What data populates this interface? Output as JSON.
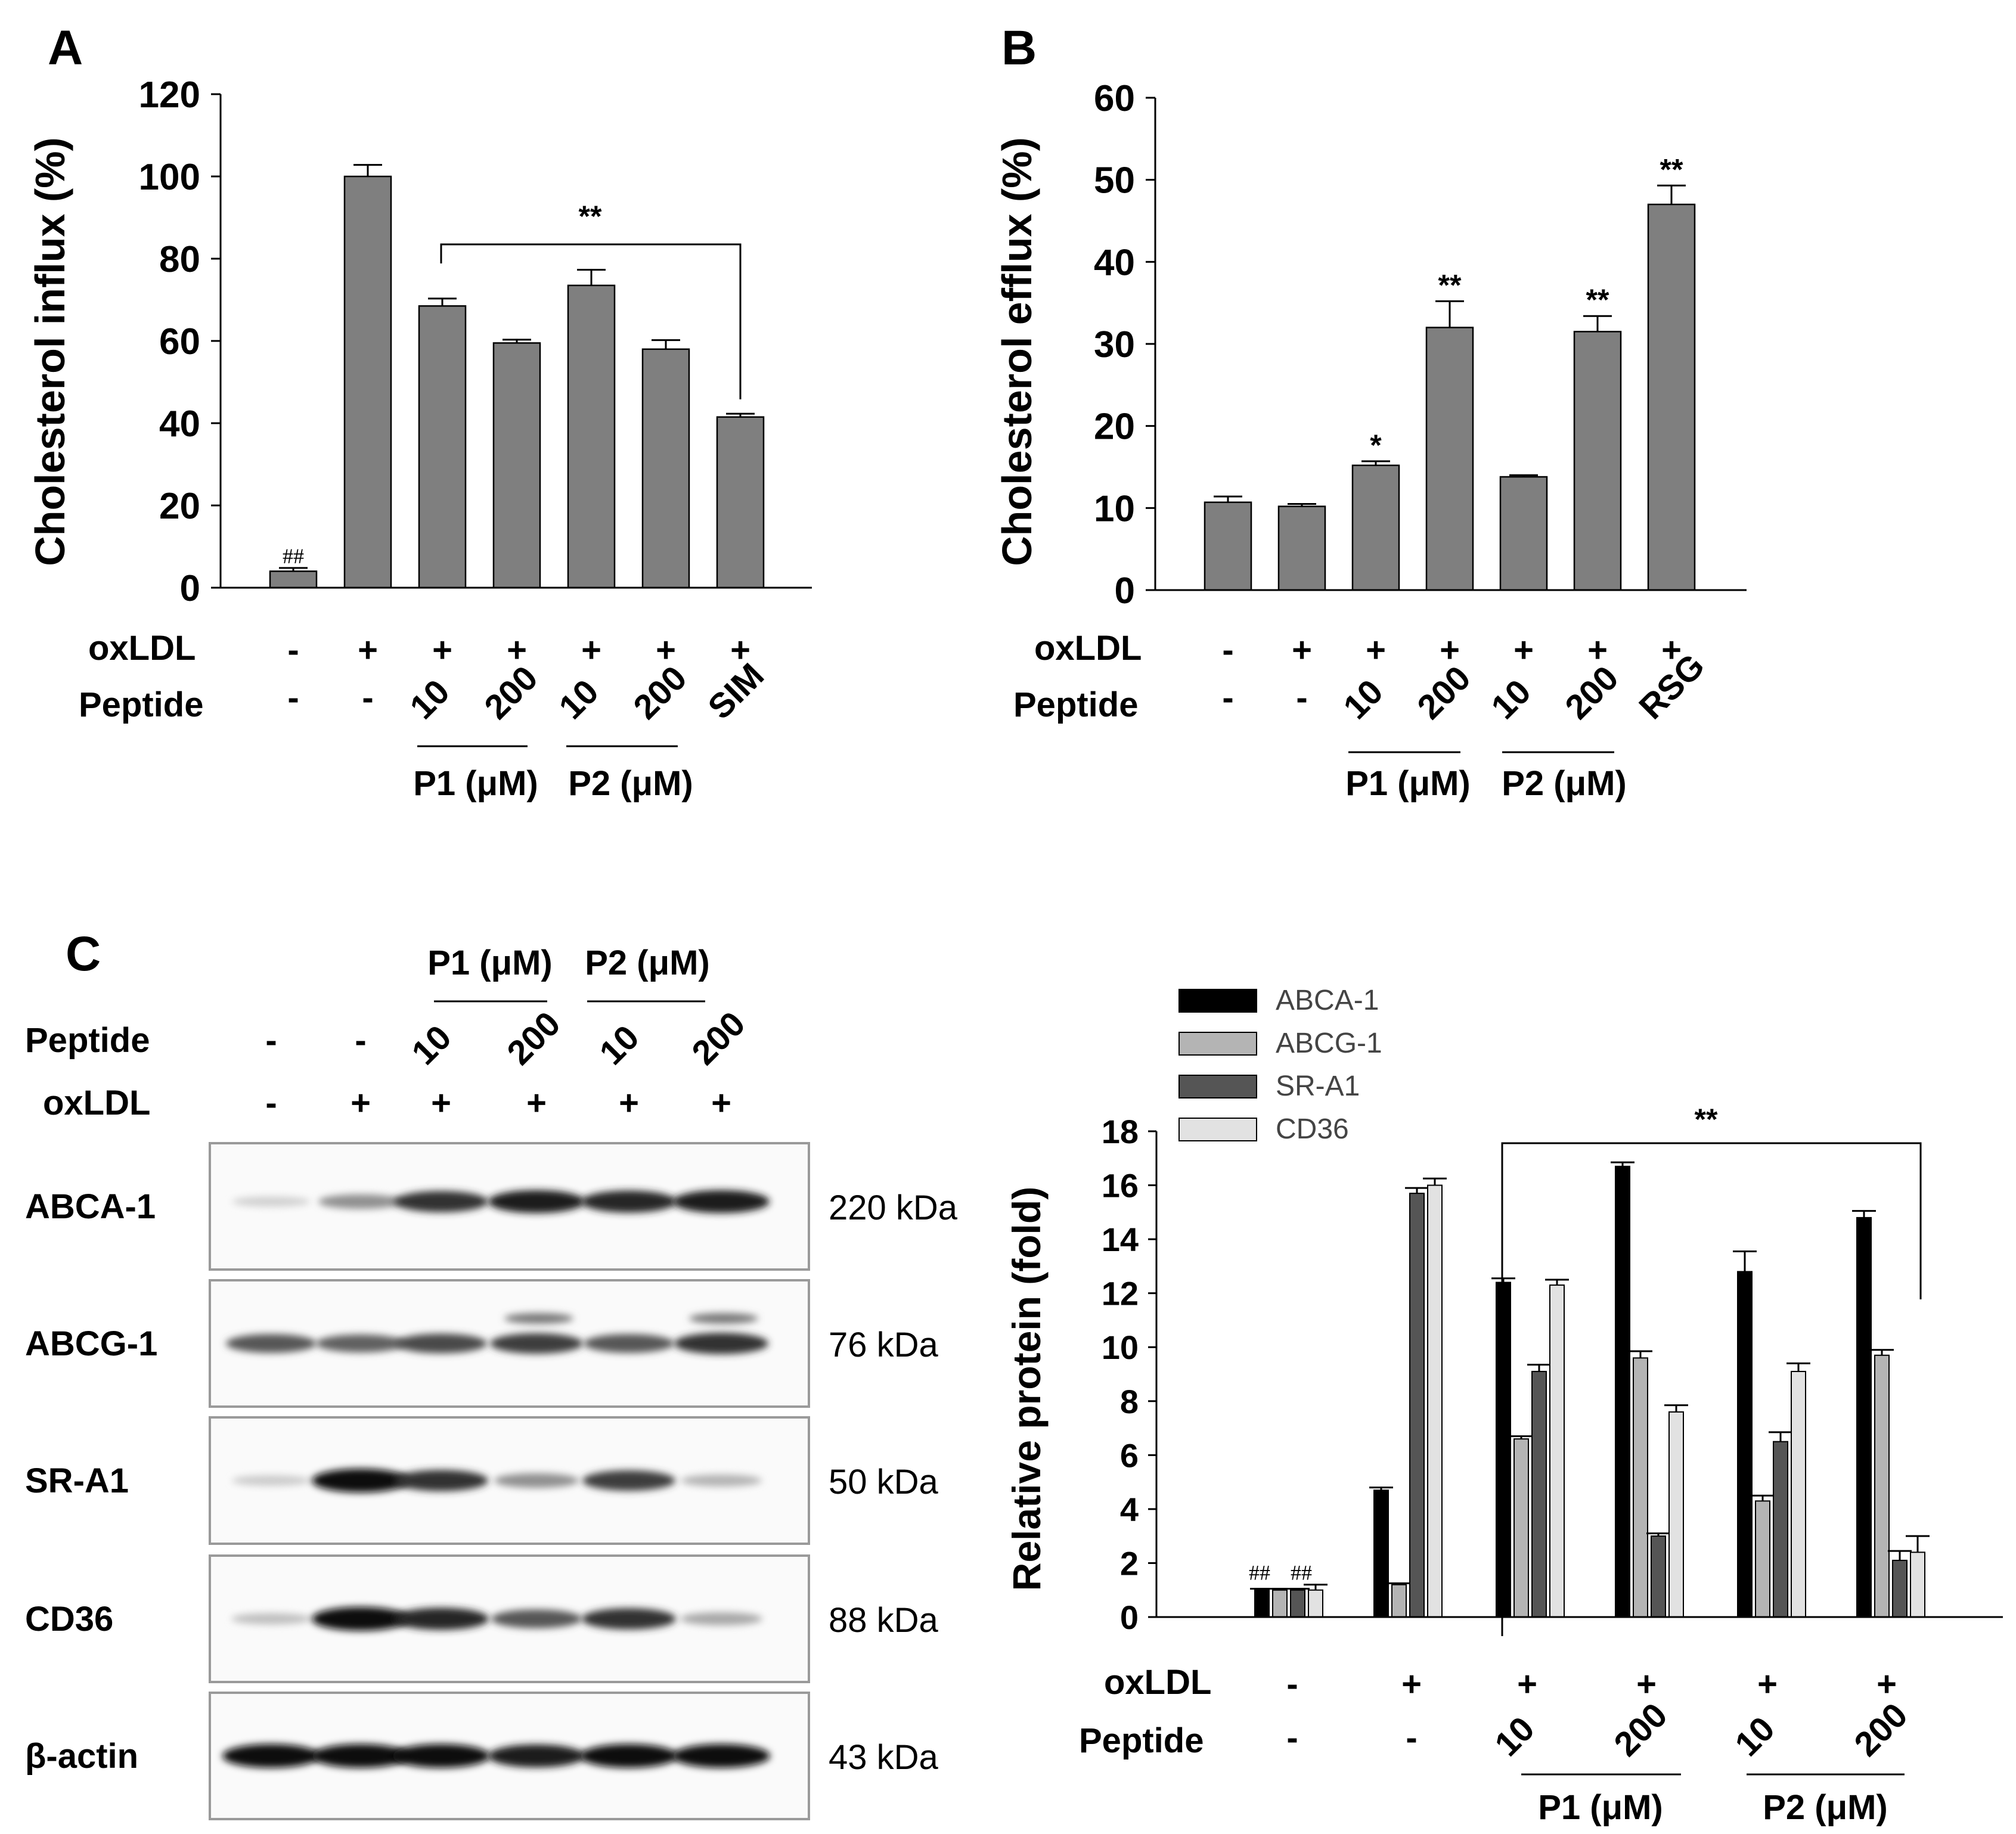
{
  "panels": {
    "a": "A",
    "b": "B",
    "c": "C"
  },
  "chart_data": [
    {
      "type": "bar",
      "panel": "A",
      "ylabel": "Cholesterol influx (%)",
      "ylim": [
        0,
        120
      ],
      "yticks": [
        "0",
        "20",
        "40",
        "60",
        "80",
        "100",
        "120"
      ],
      "row_labels": {
        "oxldl": "oxLDL",
        "peptide": "Peptide"
      },
      "oxldl": [
        "-",
        "+",
        "+",
        "+",
        "+",
        "+",
        "+"
      ],
      "peptide": [
        "-",
        "-",
        "10",
        "200",
        "10",
        "200",
        "SIM"
      ],
      "groups": [
        "P1 (μM)",
        "P2 (μM)"
      ],
      "values": [
        4,
        100,
        68.5,
        59.5,
        73.5,
        58,
        41.5
      ],
      "errors": [
        0.8,
        2.8,
        1.8,
        0.8,
        3.8,
        2.2,
        0.8
      ],
      "bar_marks": [
        "##",
        "",
        "",
        "",
        "",
        "",
        ""
      ],
      "bracket_mark": "**",
      "color": "#7f7f7f"
    },
    {
      "type": "bar",
      "panel": "B",
      "ylabel": "Cholesterol efflux (%)",
      "ylim": [
        0,
        60
      ],
      "yticks": [
        "0",
        "10",
        "20",
        "30",
        "40",
        "50",
        "60"
      ],
      "row_labels": {
        "oxldl": "oxLDL",
        "peptide": "Peptide"
      },
      "oxldl": [
        "-",
        "+",
        "+",
        "+",
        "+",
        "+",
        "+"
      ],
      "peptide": [
        "-",
        "-",
        "10",
        "200",
        "10",
        "200",
        "RSG"
      ],
      "groups": [
        "P1 (μM)",
        "P2 (μM)"
      ],
      "values": [
        10.7,
        10.2,
        15.2,
        32,
        13.8,
        31.5,
        47
      ],
      "errors": [
        0.7,
        0.3,
        0.5,
        3.2,
        0.2,
        1.9,
        2.3
      ],
      "bar_marks": [
        "",
        "",
        "*",
        "**",
        "",
        "**",
        "**"
      ],
      "color": "#7f7f7f"
    },
    {
      "type": "bar",
      "panel": "C",
      "ylabel": "Relative protein (fold)",
      "ylim": [
        0,
        18
      ],
      "yticks": [
        "0",
        "2",
        "4",
        "6",
        "8",
        "10",
        "12",
        "14",
        "16",
        "18"
      ],
      "row_labels": {
        "oxldl": "oxLDL",
        "peptide": "Peptide"
      },
      "oxldl": [
        "-",
        "+",
        "+",
        "+",
        "+",
        "+"
      ],
      "peptide": [
        "-",
        "-",
        "10",
        "200",
        "10",
        "200"
      ],
      "groups": [
        "P1 (μM)",
        "P2 (μM)"
      ],
      "bar_marks": [
        "##",
        "##"
      ],
      "bracket_mark": "**",
      "series": [
        {
          "name": "ABCA-1",
          "color": "#000000",
          "values": [
            1.0,
            4.7,
            12.4,
            16.7,
            12.8,
            14.8
          ],
          "errors": [
            0.05,
            0.1,
            0.15,
            0.15,
            0.75,
            0.25
          ]
        },
        {
          "name": "ABCG-1",
          "color": "#b4b4b4",
          "values": [
            1.0,
            1.2,
            6.6,
            9.6,
            4.3,
            9.7
          ],
          "errors": [
            0.05,
            0.05,
            0.1,
            0.25,
            0.2,
            0.2
          ]
        },
        {
          "name": "SR-A1",
          "color": "#555555",
          "values": [
            1.0,
            15.7,
            9.1,
            3.0,
            6.5,
            2.1
          ],
          "errors": [
            0.05,
            0.2,
            0.25,
            0.1,
            0.35,
            0.35
          ]
        },
        {
          "name": "CD36",
          "color": "#e2e2e2",
          "values": [
            1.0,
            16.0,
            12.3,
            7.6,
            9.1,
            2.4
          ],
          "errors": [
            0.2,
            0.25,
            0.2,
            0.25,
            0.3,
            0.6
          ]
        }
      ]
    }
  ],
  "blot": {
    "header_groups": [
      "P1 (μM)",
      "P2 (μM)"
    ],
    "row_labels": {
      "peptide": "Peptide",
      "oxldl": "oxLDL"
    },
    "peptide": [
      "-",
      "-",
      "10",
      "200",
      "10",
      "200"
    ],
    "oxldl": [
      "-",
      "+",
      "+",
      "+",
      "+",
      "+"
    ],
    "rows": [
      {
        "label": "ABCA-1",
        "size": "220 kDa",
        "intensity": [
          0.18,
          0.45,
          0.85,
          0.95,
          0.9,
          0.95
        ],
        "double": false
      },
      {
        "label": "ABCG-1",
        "size": "76 kDa",
        "intensity": [
          0.7,
          0.65,
          0.75,
          0.8,
          0.7,
          0.85
        ],
        "double": true
      },
      {
        "label": "SR-A1",
        "size": "50 kDa",
        "intensity": [
          0.2,
          1.0,
          0.85,
          0.45,
          0.8,
          0.3
        ],
        "double": false
      },
      {
        "label": "CD36",
        "size": "88 kDa",
        "intensity": [
          0.25,
          1.0,
          0.9,
          0.7,
          0.85,
          0.35
        ],
        "double": false
      },
      {
        "label": "β-actin",
        "size": "43 kDa",
        "intensity": [
          1.0,
          1.0,
          1.0,
          0.95,
          1.0,
          1.0
        ],
        "double": false
      }
    ]
  }
}
